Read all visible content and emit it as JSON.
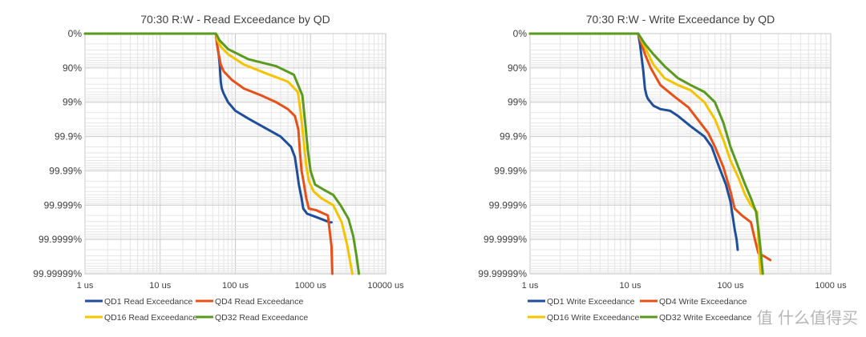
{
  "watermark": "值 什么值得买",
  "chart_data": [
    {
      "type": "line",
      "title": "70:30 R:W - Read Exceedance by QD",
      "x_scale": "log",
      "xlim": [
        1,
        10000
      ],
      "x_ticks": [
        1,
        10,
        100,
        1000,
        10000
      ],
      "x_tick_labels": [
        "1 us",
        "10 us",
        "100 us",
        "1000 us",
        "10000 us"
      ],
      "y_scale": "nines",
      "y_tick_labels": [
        "0%",
        "90%",
        "99%",
        "99.9%",
        "99.99%",
        "99.999%",
        "99.9999%",
        "99.99999%"
      ],
      "grid": true,
      "legend_position": "bottom",
      "series": [
        {
          "name": "QD1 Read Exceedance",
          "color": "#1f4e9a",
          "points": [
            [
              1,
              0
            ],
            [
              55,
              0
            ],
            [
              57,
              0.3
            ],
            [
              60,
              0.6
            ],
            [
              62,
              0.9
            ],
            [
              64,
              1.4
            ],
            [
              66,
              1.6
            ],
            [
              70,
              1.75
            ],
            [
              80,
              2.0
            ],
            [
              100,
              2.25
            ],
            [
              150,
              2.48
            ],
            [
              250,
              2.75
            ],
            [
              400,
              3.0
            ],
            [
              550,
              3.3
            ],
            [
              620,
              3.6
            ],
            [
              660,
              4.0
            ],
            [
              700,
              4.4
            ],
            [
              760,
              4.8
            ],
            [
              800,
              5.1
            ],
            [
              900,
              5.25
            ],
            [
              1200,
              5.35
            ],
            [
              1800,
              5.5
            ],
            [
              1900,
              5.5
            ]
          ]
        },
        {
          "name": "QD4 Read Exceedance",
          "color": "#e8501a",
          "points": [
            [
              1,
              0
            ],
            [
              55,
              0
            ],
            [
              57,
              0.3
            ],
            [
              60,
              0.6
            ],
            [
              64,
              0.9
            ],
            [
              70,
              1.1
            ],
            [
              90,
              1.35
            ],
            [
              130,
              1.6
            ],
            [
              220,
              1.8
            ],
            [
              350,
              2.0
            ],
            [
              500,
              2.2
            ],
            [
              620,
              2.4
            ],
            [
              690,
              2.8
            ],
            [
              720,
              3.4
            ],
            [
              760,
              4.0
            ],
            [
              820,
              4.4
            ],
            [
              880,
              4.8
            ],
            [
              950,
              5.1
            ],
            [
              1200,
              5.15
            ],
            [
              1700,
              5.3
            ],
            [
              1900,
              6.2
            ],
            [
              1950,
              7.0
            ]
          ]
        },
        {
          "name": "QD16 Read Exceedance",
          "color": "#f5c400",
          "points": [
            [
              1,
              0
            ],
            [
              55,
              0
            ],
            [
              58,
              0.2
            ],
            [
              65,
              0.4
            ],
            [
              80,
              0.6
            ],
            [
              130,
              0.9
            ],
            [
              250,
              1.15
            ],
            [
              500,
              1.4
            ],
            [
              680,
              1.7
            ],
            [
              740,
              2.3
            ],
            [
              800,
              3.0
            ],
            [
              870,
              3.8
            ],
            [
              950,
              4.3
            ],
            [
              1100,
              4.6
            ],
            [
              1400,
              4.8
            ],
            [
              2000,
              5.0
            ],
            [
              2600,
              5.5
            ],
            [
              3100,
              6.2
            ],
            [
              3400,
              6.7
            ],
            [
              3600,
              7.0
            ]
          ]
        },
        {
          "name": "QD32 Read Exceedance",
          "color": "#5a9a1e",
          "points": [
            [
              1,
              0
            ],
            [
              55,
              0
            ],
            [
              62,
              0.2
            ],
            [
              80,
              0.45
            ],
            [
              150,
              0.75
            ],
            [
              350,
              0.95
            ],
            [
              600,
              1.2
            ],
            [
              780,
              1.8
            ],
            [
              850,
              2.6
            ],
            [
              920,
              3.4
            ],
            [
              1000,
              4.0
            ],
            [
              1150,
              4.4
            ],
            [
              1500,
              4.55
            ],
            [
              2000,
              4.7
            ],
            [
              2500,
              5.0
            ],
            [
              3200,
              5.4
            ],
            [
              3700,
              5.9
            ],
            [
              4100,
              6.5
            ],
            [
              4400,
              7.0
            ]
          ]
        }
      ]
    },
    {
      "type": "line",
      "title": "70:30 R:W - Write Exceedance by QD",
      "x_scale": "log",
      "xlim": [
        1,
        1000
      ],
      "x_ticks": [
        1,
        10,
        100,
        1000
      ],
      "x_tick_labels": [
        "1 us",
        "10 us",
        "100 us",
        "1000 us"
      ],
      "y_scale": "nines",
      "y_tick_labels": [
        "0%",
        "90%",
        "99%",
        "99.9%",
        "99.99%",
        "99.999%",
        "99.9999%",
        "99.99999%"
      ],
      "grid": true,
      "legend_position": "bottom",
      "series": [
        {
          "name": "QD1 Write Exceedance",
          "color": "#1f4e9a",
          "points": [
            [
              1,
              0
            ],
            [
              12,
              0
            ],
            [
              12.5,
              0.3
            ],
            [
              13,
              0.7
            ],
            [
              13.5,
              1.1
            ],
            [
              14,
              1.6
            ],
            [
              14.5,
              1.8
            ],
            [
              15,
              1.9
            ],
            [
              17,
              2.1
            ],
            [
              20,
              2.2
            ],
            [
              25,
              2.25
            ],
            [
              30,
              2.4
            ],
            [
              40,
              2.7
            ],
            [
              55,
              3.0
            ],
            [
              65,
              3.3
            ],
            [
              75,
              3.8
            ],
            [
              90,
              4.4
            ],
            [
              100,
              4.9
            ],
            [
              105,
              5.3
            ],
            [
              110,
              5.7
            ],
            [
              115,
              6.0
            ],
            [
              118,
              6.3
            ]
          ]
        },
        {
          "name": "QD4 Write Exceedance",
          "color": "#e8501a",
          "points": [
            [
              1,
              0
            ],
            [
              12,
              0
            ],
            [
              13,
              0.3
            ],
            [
              14,
              0.6
            ],
            [
              16,
              1.0
            ],
            [
              20,
              1.5
            ],
            [
              28,
              1.85
            ],
            [
              38,
              2.15
            ],
            [
              50,
              2.6
            ],
            [
              60,
              2.9
            ],
            [
              70,
              3.3
            ],
            [
              85,
              3.9
            ],
            [
              100,
              4.6
            ],
            [
              110,
              5.1
            ],
            [
              130,
              5.3
            ],
            [
              160,
              5.5
            ],
            [
              175,
              6.0
            ],
            [
              190,
              6.4
            ],
            [
              220,
              6.5
            ],
            [
              250,
              6.6
            ]
          ]
        },
        {
          "name": "QD16 Write Exceedance",
          "color": "#f5c400",
          "points": [
            [
              1,
              0
            ],
            [
              12,
              0
            ],
            [
              14,
              0.4
            ],
            [
              17,
              0.9
            ],
            [
              22,
              1.3
            ],
            [
              30,
              1.5
            ],
            [
              40,
              1.65
            ],
            [
              55,
              2.0
            ],
            [
              70,
              2.5
            ],
            [
              85,
              3.1
            ],
            [
              100,
              3.7
            ],
            [
              120,
              4.2
            ],
            [
              140,
              4.7
            ],
            [
              160,
              5.0
            ],
            [
              185,
              5.2
            ],
            [
              190,
              6.0
            ],
            [
              195,
              6.6
            ],
            [
              200,
              7.0
            ]
          ]
        },
        {
          "name": "QD32 Write Exceedance",
          "color": "#5a9a1e",
          "points": [
            [
              1,
              0
            ],
            [
              12,
              0
            ],
            [
              14,
              0.3
            ],
            [
              17,
              0.6
            ],
            [
              22,
              0.95
            ],
            [
              30,
              1.3
            ],
            [
              40,
              1.5
            ],
            [
              55,
              1.7
            ],
            [
              70,
              2.0
            ],
            [
              85,
              2.6
            ],
            [
              100,
              3.3
            ],
            [
              120,
              3.9
            ],
            [
              140,
              4.4
            ],
            [
              160,
              4.8
            ],
            [
              180,
              5.2
            ],
            [
              190,
              5.7
            ],
            [
              200,
              6.3
            ],
            [
              210,
              7.0
            ]
          ]
        }
      ]
    }
  ]
}
